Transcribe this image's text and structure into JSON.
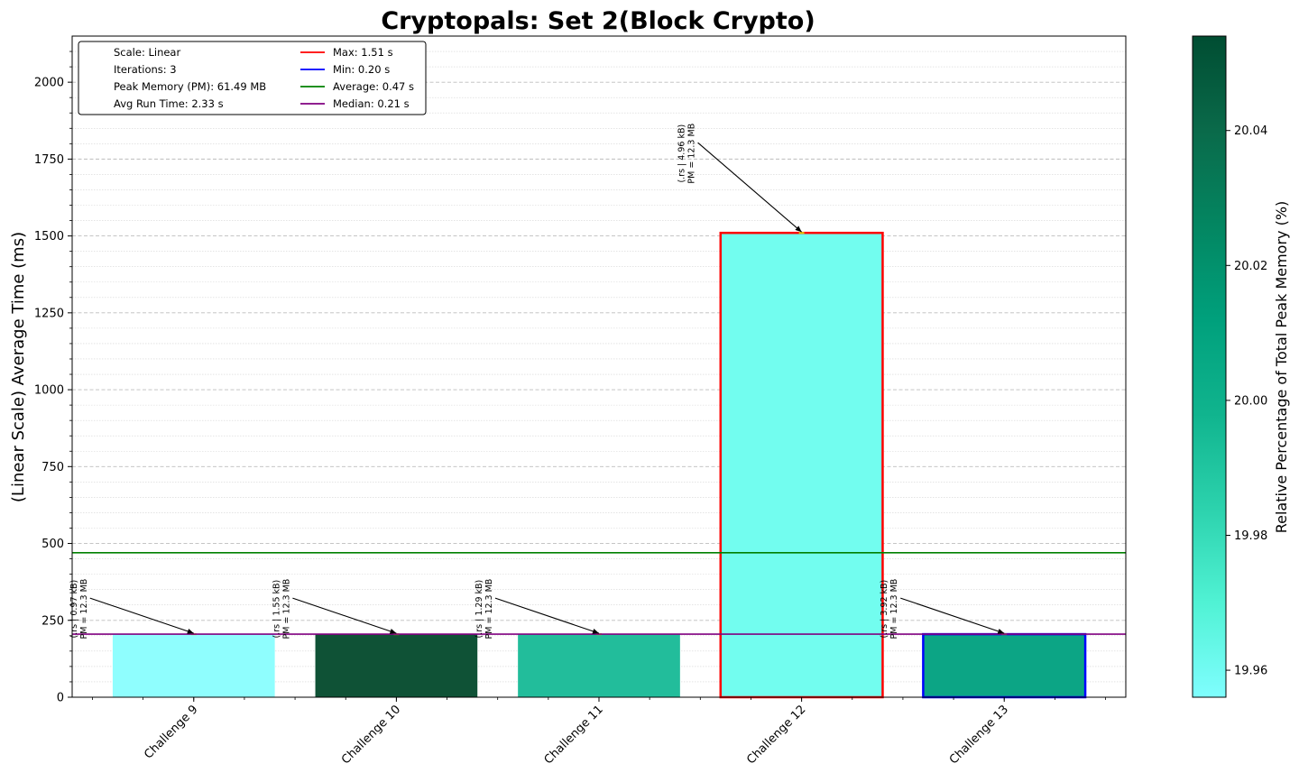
{
  "chart_data": {
    "type": "bar",
    "title": "Cryptopals: Set 2(Block Crypto)",
    "ylabel": "(Linear Scale) Average Time (ms)",
    "xlabel": "",
    "ylim": [
      0,
      2150
    ],
    "yticks": [
      0,
      250,
      500,
      750,
      1000,
      1250,
      1500,
      1750,
      2000
    ],
    "grid": true,
    "categories": [
      "Challenge 9",
      "Challenge 10",
      "Challenge 11",
      "Challenge 12",
      "Challenge 13"
    ],
    "values": [
      205,
      205,
      205,
      1510,
      205
    ],
    "bar_colors": [
      "#8ffefe",
      "#0f5236",
      "#22bd9b",
      "#72fdef",
      "#0ca585"
    ],
    "bar_outline": [
      "",
      "",
      "",
      "#ff0000",
      "#0000ff"
    ],
    "annotations": [
      {
        "line1": "(.rs | 0.97 kB)",
        "line2": "PM = 12.3 MB"
      },
      {
        "line1": "(.rs | 1.55 kB)",
        "line2": "PM = 12.3 MB"
      },
      {
        "line1": "(.rs | 1.29 kB)",
        "line2": "PM = 12.3 MB"
      },
      {
        "line1": "(.rs | 4.96 kB)",
        "line2": "PM = 12.3 MB"
      },
      {
        "line1": "(.rs | 3.92 kB)",
        "line2": "PM = 12.3 MB"
      }
    ],
    "reference_lines": [
      {
        "label": "Average",
        "value": 470,
        "color": "#008000"
      },
      {
        "label": "Median",
        "value": 205,
        "color": "#800080"
      }
    ],
    "legend": {
      "placement": "top-left",
      "info": [
        "Scale: Linear",
        "Iterations: 3",
        "Peak Memory (PM): 61.49 MB",
        "Avg Run Time: 2.33 s"
      ],
      "lines": [
        {
          "label": "Max: 1.51 s",
          "color": "#ff0000"
        },
        {
          "label": "Min: 0.20 s",
          "color": "#0000ff"
        },
        {
          "label": "Average: 0.47 s",
          "color": "#008000"
        },
        {
          "label": "Median: 0.21 s",
          "color": "#800080"
        }
      ]
    },
    "colorbar": {
      "label": "Relative Percentage of Total Peak Memory (%)",
      "range": [
        19.956,
        20.054
      ],
      "ticks": [
        "19.96",
        "19.98",
        "20.00",
        "20.02",
        "20.04"
      ],
      "colors": [
        "#7ffefe",
        "#50f2d4",
        "#2cd2ad",
        "#10b48e",
        "#00a07c",
        "#038661",
        "#0a6a4a",
        "#004d32"
      ]
    }
  }
}
